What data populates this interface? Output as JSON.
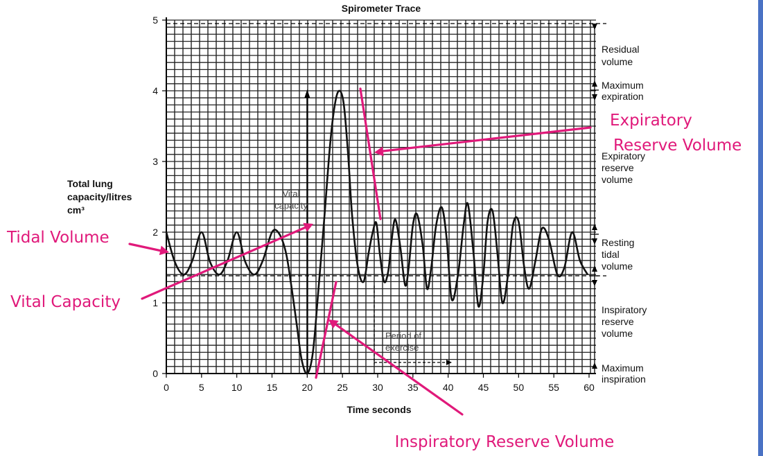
{
  "colors": {
    "annotation": "#e0197a",
    "trace": "#111111",
    "grid": "#222222",
    "side_bar": "#4a72c4"
  },
  "chart_data": {
    "type": "line",
    "title": "Spirometer Trace",
    "xlabel": "Time seconds",
    "ylabel": [
      "Total lung",
      "capacity/litres",
      "cm³"
    ],
    "xlim": [
      0,
      60
    ],
    "ylim": [
      0,
      5
    ],
    "x_ticks": [
      0,
      5,
      10,
      15,
      20,
      25,
      30,
      35,
      40,
      45,
      50,
      55,
      60
    ],
    "y_ticks": [
      0,
      1,
      2,
      3,
      4,
      5
    ],
    "grid": true,
    "series": [
      {
        "x": [
          0,
          1.2,
          2.5,
          3.7,
          5,
          6.2,
          7.5,
          8.7,
          10,
          11.2,
          12.5,
          13.7,
          15,
          16,
          17,
          17.8,
          18.5,
          19.2,
          20,
          20.8,
          21.6,
          22.5,
          23.3,
          24,
          24.6,
          25.2,
          25.8,
          26.4,
          27.2,
          28,
          28.7,
          29.3,
          29.8,
          30.3,
          30.9,
          31.5,
          32,
          32.5,
          33.2,
          33.9,
          34.4,
          35,
          35.6,
          36.4,
          37,
          37.6,
          38.3,
          39.1,
          39.8,
          40.5,
          41.4,
          42.2,
          42.8,
          43.6,
          44.3,
          45,
          45.6,
          46.3,
          47,
          47.7,
          48.5,
          49.2,
          50,
          50.8,
          51.5,
          52.4,
          53.3,
          54.3,
          55.5,
          56.5,
          57.6,
          58.7,
          59.8
        ],
        "y": [
          2,
          1.58,
          1.4,
          1.6,
          2,
          1.58,
          1.4,
          1.6,
          2,
          1.58,
          1.4,
          1.6,
          2,
          1.98,
          1.7,
          1.2,
          0.7,
          0.2,
          0,
          0.3,
          1.2,
          2.3,
          3.3,
          3.85,
          4,
          3.8,
          3.1,
          2.2,
          1.5,
          1.3,
          1.7,
          2,
          2.13,
          1.7,
          1.3,
          1.45,
          1.9,
          2.18,
          1.8,
          1.25,
          1.5,
          2.1,
          2.25,
          1.8,
          1.2,
          1.5,
          2.1,
          2.35,
          1.9,
          1.05,
          1.4,
          2.1,
          2.4,
          1.7,
          0.95,
          1.4,
          2.15,
          2.3,
          1.7,
          1,
          1.4,
          2.1,
          2.15,
          1.5,
          1.2,
          1.6,
          2.05,
          1.9,
          1.4,
          1.5,
          2,
          1.6,
          1.4
        ]
      }
    ],
    "inner_labels": {
      "vital_capacity": [
        "Vital",
        "capacity"
      ],
      "exercise": [
        "Period of",
        "exercise"
      ]
    },
    "right_labels": [
      {
        "id": "residual",
        "lines": [
          "Residual",
          "volume"
        ]
      },
      {
        "id": "max_expiration",
        "lines": [
          "Maximum",
          "expiration"
        ]
      },
      {
        "id": "expiratory_reserve",
        "lines": [
          "Expiratory",
          "reserve",
          "volume"
        ]
      },
      {
        "id": "resting_tidal",
        "lines": [
          "Resting",
          "tidal",
          "volume"
        ]
      },
      {
        "id": "inspiratory_reserve",
        "lines": [
          "Inspiratory",
          "reserve",
          "volume"
        ]
      },
      {
        "id": "max_inspiration",
        "lines": [
          "Maximum",
          "inspiration"
        ]
      }
    ],
    "annotations": [
      {
        "id": "tidal",
        "lines": [
          "Tidal Volume"
        ]
      },
      {
        "id": "vital",
        "lines": [
          "Vital Capacity"
        ]
      },
      {
        "id": "expiratory",
        "lines": [
          "Expiratory",
          "Reserve Volume"
        ]
      },
      {
        "id": "inspiratory",
        "lines": [
          "Inspiratory Reserve Volume"
        ]
      }
    ]
  }
}
